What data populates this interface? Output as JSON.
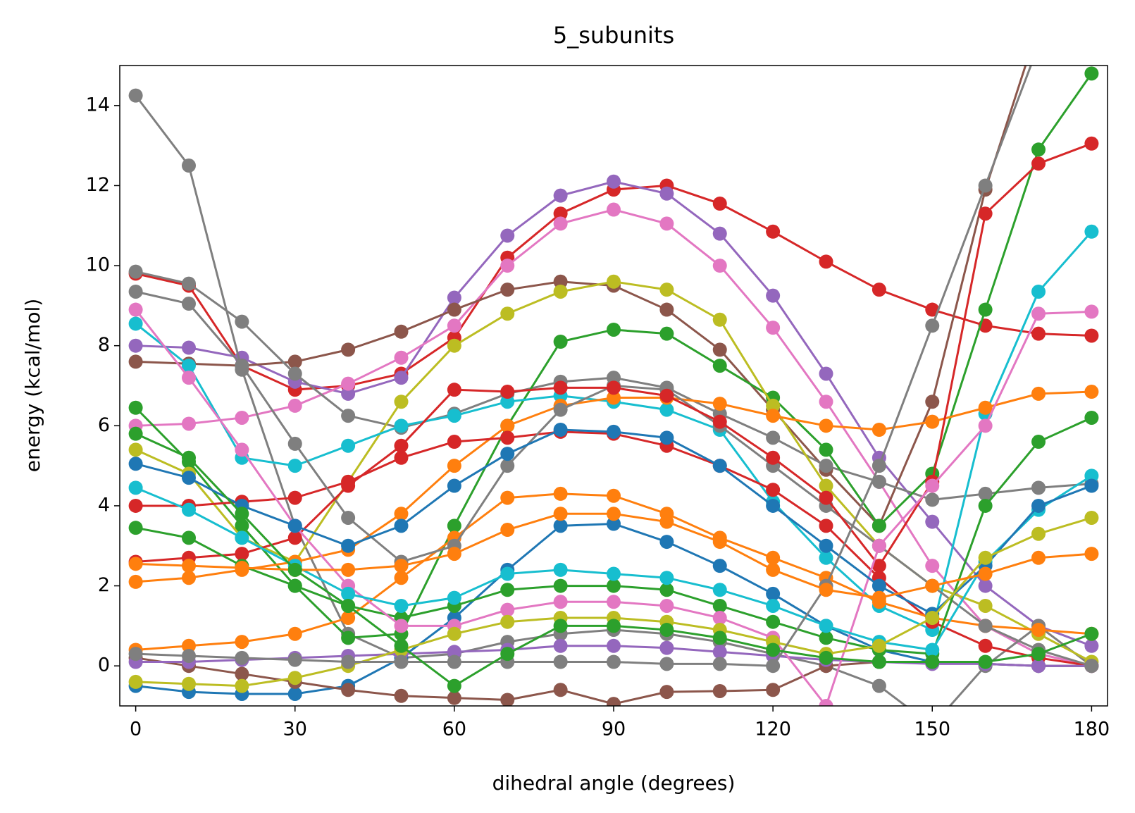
{
  "chart_data": {
    "type": "line",
    "title": "5_subunits",
    "x_label": "dihedral angle (degrees)",
    "y_label": "energy (kcal/mol)",
    "x": [
      0,
      10,
      20,
      30,
      40,
      50,
      60,
      70,
      80,
      90,
      100,
      110,
      120,
      130,
      140,
      150,
      160,
      170,
      180
    ],
    "xlim": [
      -3,
      183
    ],
    "ylim": [
      -1,
      15
    ],
    "xticks": [
      0,
      30,
      60,
      90,
      120,
      150,
      180
    ],
    "yticks": [
      0,
      2,
      4,
      6,
      8,
      10,
      12,
      14
    ],
    "grid": false,
    "series": [
      {
        "color": "#d62728",
        "values": [
          9.8,
          9.5,
          7.5,
          6.9,
          7.0,
          7.3,
          8.2,
          10.2,
          11.3,
          11.9,
          12.0,
          11.55,
          10.85,
          10.1,
          9.4,
          8.9,
          8.5,
          8.3,
          8.25
        ]
      },
      {
        "color": "#9467bd",
        "values": [
          8.0,
          7.95,
          7.7,
          7.1,
          6.8,
          7.2,
          9.2,
          10.75,
          11.75,
          12.1,
          11.8,
          10.8,
          9.25,
          7.3,
          5.2,
          3.6,
          2.0,
          1.0,
          0.5
        ]
      },
      {
        "color": "#e377c2",
        "values": [
          6.0,
          6.05,
          6.2,
          6.5,
          7.05,
          7.7,
          8.5,
          10.0,
          11.05,
          11.4,
          11.05,
          10.0,
          8.45,
          6.6,
          4.6,
          2.5,
          1.0,
          0.3,
          0.0
        ]
      },
      {
        "color": "#8c564b",
        "values": [
          7.6,
          7.55,
          7.5,
          7.6,
          7.9,
          8.35,
          8.9,
          9.4,
          9.6,
          9.5,
          8.9,
          7.9,
          6.4,
          4.9,
          3.5,
          6.6,
          11.9,
          16.0,
          20.0
        ]
      },
      {
        "color": "#7f7f7f",
        "values": [
          14.25,
          12.5,
          7.4,
          3.5,
          0.8,
          0.2,
          0.3,
          0.6,
          0.8,
          0.9,
          0.8,
          0.6,
          0.3,
          0.0,
          -0.5,
          -1.5,
          0.0,
          1.0,
          0.0
        ]
      },
      {
        "color": "#7f7f7f",
        "values": [
          9.85,
          9.55,
          8.6,
          7.3,
          6.25,
          5.95,
          6.3,
          6.8,
          7.1,
          7.2,
          6.95,
          6.3,
          5.7,
          5.0,
          4.6,
          4.15,
          4.3,
          4.45,
          4.55
        ]
      },
      {
        "color": "#2ca02c",
        "values": [
          6.45,
          5.1,
          3.5,
          2.0,
          0.7,
          0.8,
          3.5,
          6.0,
          8.1,
          8.4,
          8.3,
          7.5,
          6.7,
          5.4,
          3.5,
          4.8,
          8.9,
          12.9,
          14.8
        ]
      },
      {
        "color": "#bcbd22",
        "values": [
          5.4,
          4.8,
          3.2,
          2.6,
          4.6,
          6.6,
          8.0,
          8.8,
          9.35,
          9.6,
          9.4,
          8.65,
          6.5,
          4.5,
          3.0,
          2.0,
          1.5,
          0.8,
          0.1
        ]
      },
      {
        "color": "#17becf",
        "values": [
          8.55,
          7.5,
          5.2,
          5.0,
          5.5,
          6.0,
          6.25,
          6.6,
          6.75,
          6.6,
          6.4,
          5.9,
          4.1,
          2.7,
          1.5,
          0.9,
          6.3,
          9.35,
          10.85
        ]
      },
      {
        "color": "#ff7f0e",
        "values": [
          2.1,
          2.2,
          2.4,
          2.6,
          2.9,
          3.8,
          5.0,
          6.0,
          6.5,
          6.7,
          6.7,
          6.55,
          6.25,
          6.0,
          5.9,
          6.1,
          6.45,
          6.8,
          6.85
        ]
      },
      {
        "color": "#1f77b4",
        "values": [
          -0.5,
          -0.65,
          -0.7,
          -0.7,
          -0.5,
          0.2,
          1.2,
          2.4,
          3.5,
          3.55,
          3.1,
          2.5,
          1.8,
          1.0,
          0.4,
          0.1,
          0.05,
          0.0,
          0.0
        ]
      },
      {
        "color": "#8c564b",
        "values": [
          0.2,
          0.0,
          -0.2,
          -0.4,
          -0.6,
          -0.75,
          -0.8,
          -0.85,
          -0.6,
          -0.95,
          -0.65,
          -0.63,
          -0.6,
          0.0,
          0.1,
          0.1,
          0.05,
          0.0,
          0.0
        ]
      },
      {
        "color": "#d62728",
        "values": [
          4.0,
          4.0,
          4.1,
          4.2,
          4.6,
          5.2,
          5.6,
          5.7,
          5.85,
          5.8,
          5.5,
          5.0,
          4.4,
          3.5,
          2.2,
          1.1,
          0.5,
          0.2,
          0.0
        ]
      },
      {
        "color": "#9467bd",
        "values": [
          0.1,
          0.1,
          0.15,
          0.2,
          0.25,
          0.3,
          0.35,
          0.4,
          0.5,
          0.5,
          0.45,
          0.35,
          0.25,
          0.15,
          0.1,
          0.05,
          0.05,
          0.0,
          0.0
        ]
      },
      {
        "color": "#ff7f0e",
        "values": [
          0.4,
          0.5,
          0.6,
          0.8,
          1.2,
          2.2,
          3.2,
          4.2,
          4.3,
          4.25,
          3.8,
          3.2,
          2.7,
          2.2,
          1.6,
          1.2,
          1.0,
          0.9,
          0.8
        ]
      },
      {
        "color": "#7f7f7f",
        "values": [
          9.35,
          9.05,
          7.5,
          5.55,
          3.7,
          2.6,
          3.0,
          5.0,
          6.4,
          7.0,
          6.9,
          6.0,
          5.0,
          4.0,
          3.0,
          2.0,
          1.0,
          0.4,
          0.0
        ]
      },
      {
        "color": "#d62728",
        "values": [
          2.6,
          2.7,
          2.8,
          3.2,
          4.5,
          5.5,
          6.9,
          6.85,
          6.95,
          6.95,
          6.75,
          6.1,
          5.2,
          4.2,
          2.5,
          4.6,
          11.3,
          12.55,
          13.05
        ]
      },
      {
        "color": "#2ca02c",
        "values": [
          3.45,
          3.2,
          2.5,
          2.0,
          1.5,
          1.2,
          1.5,
          1.9,
          2.0,
          2.0,
          1.9,
          1.5,
          1.1,
          0.7,
          0.4,
          0.3,
          4.0,
          5.6,
          6.2
        ]
      },
      {
        "color": "#e377c2",
        "values": [
          8.9,
          7.2,
          5.4,
          3.5,
          2.0,
          1.0,
          1.0,
          1.4,
          1.6,
          1.6,
          1.5,
          1.2,
          0.7,
          -1.0,
          3.0,
          4.5,
          6.0,
          8.8,
          8.85
        ]
      },
      {
        "color": "#17becf",
        "values": [
          4.45,
          3.9,
          3.2,
          2.5,
          1.8,
          1.5,
          1.7,
          2.3,
          2.4,
          2.3,
          2.2,
          1.9,
          1.5,
          1.0,
          0.6,
          0.4,
          2.6,
          3.9,
          4.75
        ]
      },
      {
        "color": "#1f77b4",
        "values": [
          5.05,
          4.7,
          4.0,
          3.5,
          3.0,
          3.5,
          4.5,
          5.3,
          5.9,
          5.85,
          5.7,
          5.0,
          4.0,
          3.0,
          2.0,
          1.3,
          2.5,
          4.0,
          4.5
        ]
      },
      {
        "color": "#bcbd22",
        "values": [
          -0.4,
          -0.45,
          -0.5,
          -0.3,
          0.0,
          0.4,
          0.8,
          1.1,
          1.2,
          1.2,
          1.1,
          0.9,
          0.6,
          0.3,
          0.5,
          1.2,
          2.7,
          3.3,
          3.7
        ]
      },
      {
        "color": "#7f7f7f",
        "values": [
          0.3,
          0.25,
          0.2,
          0.15,
          0.1,
          0.1,
          0.1,
          0.1,
          0.1,
          0.1,
          0.05,
          0.05,
          0.0,
          2.0,
          5.0,
          8.5,
          12.0,
          15.5,
          19.0
        ]
      },
      {
        "color": "#ff7f0e",
        "values": [
          2.55,
          2.5,
          2.45,
          2.4,
          2.4,
          2.5,
          2.8,
          3.4,
          3.8,
          3.8,
          3.6,
          3.1,
          2.4,
          1.9,
          1.7,
          2.0,
          2.3,
          2.7,
          2.8
        ]
      },
      {
        "color": "#2ca02c",
        "values": [
          5.8,
          5.2,
          3.8,
          2.4,
          1.5,
          0.5,
          -0.5,
          0.3,
          1.0,
          1.0,
          0.9,
          0.7,
          0.4,
          0.2,
          0.1,
          0.1,
          0.1,
          0.3,
          0.8
        ]
      }
    ]
  }
}
